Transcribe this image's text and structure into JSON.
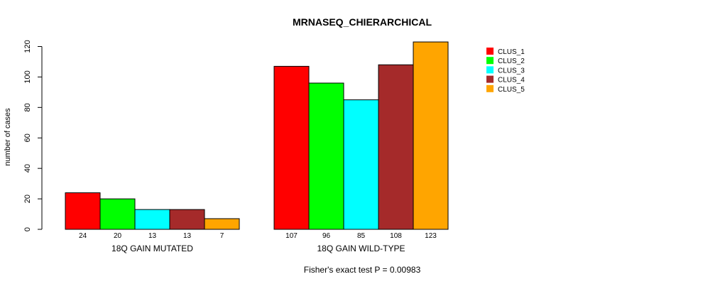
{
  "chart_data": {
    "type": "bar",
    "title": "MRNASEQ_CHIERARCHICAL",
    "ylabel": "number of cases",
    "xlabel": "",
    "ylim": [
      0,
      120
    ],
    "yticks": [
      0,
      20,
      40,
      60,
      80,
      100,
      120
    ],
    "groups": [
      "18Q GAIN MUTATED",
      "18Q GAIN WILD-TYPE"
    ],
    "series": [
      {
        "name": "CLUS_1",
        "color": "#ff0000",
        "values": [
          24,
          107
        ]
      },
      {
        "name": "CLUS_2",
        "color": "#00ff00",
        "values": [
          20,
          96
        ]
      },
      {
        "name": "CLUS_3",
        "color": "#00ffff",
        "values": [
          13,
          85
        ]
      },
      {
        "name": "CLUS_4",
        "color": "#a52a2a",
        "values": [
          13,
          108
        ]
      },
      {
        "name": "CLUS_5",
        "color": "#ffa500",
        "values": [
          7,
          123
        ]
      }
    ],
    "legend_position": "top-right",
    "footnote": "Fisher's exact test P = 0.00983"
  }
}
